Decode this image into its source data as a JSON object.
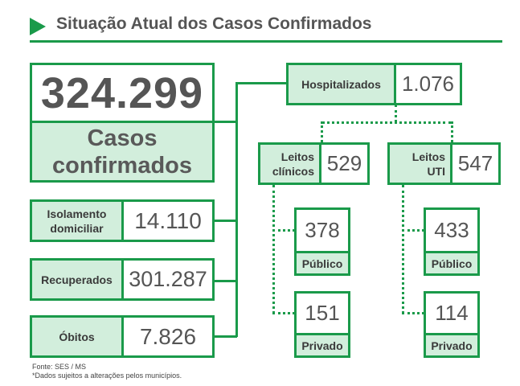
{
  "header": {
    "title": "Situação Atual dos Casos Confirmados",
    "accent_color": "#1a9a4a",
    "label_fill": "#d2eedc"
  },
  "confirmed": {
    "value": "324.299",
    "label_line1": "Casos",
    "label_line2": "confirmados"
  },
  "isolation": {
    "label_line1": "Isolamento",
    "label_line2": "domiciliar",
    "value": "14.110"
  },
  "recovered": {
    "label": "Recuperados",
    "value": "301.287"
  },
  "deaths": {
    "label": "Óbitos",
    "value": "7.826"
  },
  "hospitalized": {
    "label": "Hospitalizados",
    "value": "1.076"
  },
  "clinical_beds": {
    "label_line1": "Leitos",
    "label_line2": "clínicos",
    "value": "529",
    "public": {
      "value": "378",
      "label": "Público"
    },
    "private": {
      "value": "151",
      "label": "Privado"
    }
  },
  "icu_beds": {
    "label_line1": "Leitos",
    "label_line2": "UTI",
    "value": "547",
    "public": {
      "value": "433",
      "label": "Público"
    },
    "private": {
      "value": "114",
      "label": "Privado"
    }
  },
  "footer": {
    "source": "Fonte: SES / MS",
    "note": "*Dados sujeitos a alterações pelos municípios."
  }
}
